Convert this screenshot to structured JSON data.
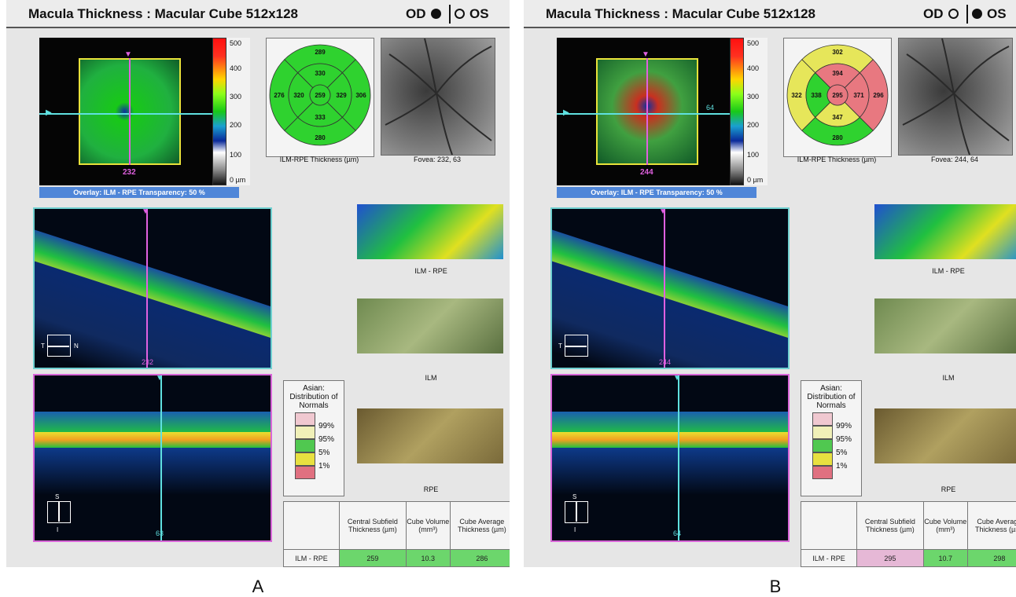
{
  "panels": [
    {
      "header": {
        "title": "Macula Thickness : Macular Cube 512x128",
        "od_label": "OD",
        "os_label": "OS",
        "selected_eye": "OD"
      },
      "thickness_map": {
        "marker_value": "232",
        "scale_ticks": [
          "500",
          "400",
          "300",
          "200",
          "100",
          "0 µm"
        ],
        "overlay_text": "Overlay: ILM - RPE  Transparency: 50 %"
      },
      "etdrs": {
        "caption": "ILM-RPE Thickness (µm)",
        "superior_outer": "289",
        "superior_inner": "330",
        "temporal_outer": "276",
        "temporal_inner": "320",
        "central": "259",
        "nasal_inner": "329",
        "nasal_outer": "306",
        "inferior_inner": "333",
        "inferior_outer": "280",
        "colors": {
          "superior_outer": "#2fd22f",
          "superior_inner": "#2fd22f",
          "temporal_outer": "#2fd22f",
          "temporal_inner": "#2fd22f",
          "central": "#2fd22f",
          "nasal_inner": "#2fd22f",
          "nasal_outer": "#2fd22f",
          "inferior_inner": "#2fd22f",
          "inferior_outer": "#2fd22f"
        }
      },
      "fundus_caption": "Fovea: 232, 63",
      "bscan_h": {
        "number": "232",
        "orient_left": "T",
        "orient_right": "N"
      },
      "bscan_v": {
        "number": "63",
        "orient_top": "S",
        "orient_bottom": "I"
      },
      "surfaces": [
        "ILM - RPE",
        "ILM",
        "RPE"
      ],
      "legend": {
        "title": "Asian: Distribution of Normals",
        "items": [
          "99%",
          "95%",
          "5%",
          "1%"
        ],
        "colors": [
          "#f0c8d0",
          "#f0f0b8",
          "#50c850",
          "#e8e040",
          "#e07080"
        ]
      },
      "table": {
        "headers": [
          "Central Subfield Thickness (µm)",
          "Cube Volume (mm³)",
          "Cube Average Thickness (µm)"
        ],
        "row_label": "ILM - RPE",
        "values": [
          "259",
          "10.3",
          "286"
        ],
        "value_colors": [
          "#6cd66c",
          "#6cd66c",
          "#6cd66c"
        ]
      },
      "panel_label": "A"
    },
    {
      "header": {
        "title": "Macula Thickness : Macular Cube 512x128",
        "od_label": "OD",
        "os_label": "OS",
        "selected_eye": "OS"
      },
      "thickness_map": {
        "marker_value": "244",
        "scale_ticks": [
          "500",
          "400",
          "300",
          "200",
          "100",
          "0 µm"
        ],
        "overlay_text": "Overlay: ILM - RPE  Transparency: 50 %",
        "side_value": "64"
      },
      "etdrs": {
        "caption": "ILM-RPE Thickness (µm)",
        "superior_outer": "302",
        "superior_inner": "394",
        "temporal_outer": "322",
        "temporal_inner": "338",
        "central": "295",
        "nasal_inner": "371",
        "nasal_outer": "296",
        "inferior_inner": "347",
        "inferior_outer": "280",
        "colors": {
          "superior_outer": "#e6e65a",
          "superior_inner": "#e87880",
          "temporal_outer": "#e6e65a",
          "temporal_inner": "#2fd22f",
          "central": "#e87880",
          "nasal_inner": "#e87880",
          "nasal_outer": "#e87880",
          "inferior_inner": "#e6e65a",
          "inferior_outer": "#2fd22f"
        }
      },
      "fundus_caption": "Fovea: 244, 64",
      "bscan_h": {
        "number": "244",
        "orient_left": "T",
        "orient_right": ""
      },
      "bscan_v": {
        "number": "64",
        "orient_top": "S",
        "orient_bottom": "I"
      },
      "surfaces": [
        "ILM - RPE",
        "ILM",
        "RPE"
      ],
      "legend": {
        "title": "Asian: Distribution of Normals",
        "items": [
          "99%",
          "95%",
          "5%",
          "1%"
        ],
        "colors": [
          "#f0c8d0",
          "#f0f0b8",
          "#50c850",
          "#e8e040",
          "#e07080"
        ]
      },
      "table": {
        "headers": [
          "Central Subfield Thickness (µm)",
          "Cube Volume (mm³)",
          "Cube Average Thickness (µm)"
        ],
        "row_label": "ILM - RPE",
        "values": [
          "295",
          "10.7",
          "298"
        ],
        "value_colors": [
          "#e6b8d6",
          "#6cd66c",
          "#6cd66c"
        ]
      },
      "panel_label": "B"
    }
  ]
}
